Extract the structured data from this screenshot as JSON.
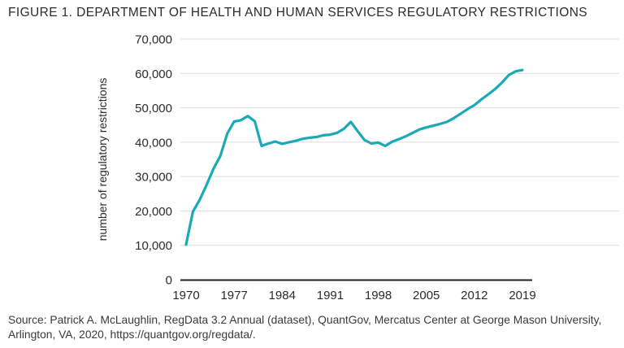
{
  "chart_data": {
    "type": "line",
    "title": "FIGURE 1. DEPARTMENT OF HEALTH AND HUMAN SERVICES REGULATORY RESTRICTIONS",
    "xlabel": "",
    "ylabel": "number of regulatory restrictions",
    "xlim": [
      1970,
      2019
    ],
    "ylim": [
      0,
      70000
    ],
    "grid": "horizontal",
    "legend": "none",
    "x_tick_labels": [
      "1970",
      "1977",
      "1984",
      "1991",
      "1998",
      "2005",
      "2012",
      "2019"
    ],
    "y_tick_labels": [
      "0",
      "10,000",
      "20,000",
      "30,000",
      "40,000",
      "50,000",
      "60,000",
      "70,000"
    ],
    "years": [
      1970,
      1971,
      1972,
      1973,
      1974,
      1975,
      1976,
      1977,
      1978,
      1979,
      1980,
      1981,
      1982,
      1983,
      1984,
      1985,
      1986,
      1987,
      1988,
      1989,
      1990,
      1991,
      1992,
      1993,
      1994,
      1995,
      1996,
      1997,
      1998,
      1999,
      2000,
      2001,
      2002,
      2003,
      2004,
      2005,
      2006,
      2007,
      2008,
      2009,
      2010,
      2011,
      2012,
      2013,
      2014,
      2015,
      2016,
      2017,
      2018,
      2019
    ],
    "values": [
      10200,
      19800,
      23300,
      27600,
      32300,
      36000,
      42500,
      46000,
      46400,
      47600,
      46100,
      38900,
      39600,
      40200,
      39500,
      40000,
      40400,
      41000,
      41300,
      41500,
      42000,
      42200,
      42700,
      43900,
      45900,
      43200,
      40600,
      39600,
      39900,
      38900,
      40100,
      40900,
      41700,
      42700,
      43700,
      44300,
      44800,
      45300,
      45900,
      47000,
      48300,
      49600,
      50800,
      52400,
      53900,
      55400,
      57300,
      59500,
      60600,
      61000
    ]
  },
  "footer": {
    "source": "Source: Patrick A. McLaughlin, RegData 3.2 Annual (dataset), QuantGov, Mercatus Center at George Mason University, Arlington, VA, 2020, https://quantgov.org/regdata/."
  },
  "colors": {
    "line": "#1ba9b6",
    "axis": "#231f20",
    "grid": "#dcdcdc",
    "tick_text": "#2b2b2b",
    "source_text": "#3a3a3a"
  }
}
